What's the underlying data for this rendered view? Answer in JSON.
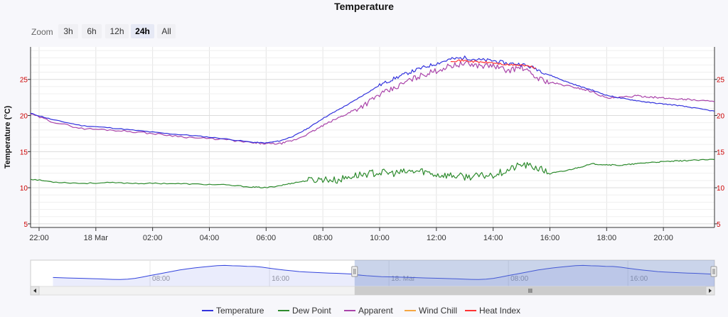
{
  "chart_data": {
    "type": "line",
    "title": "Temperature",
    "ylabel": "Temperature (°C)",
    "ylim": [
      4.5,
      29.5
    ],
    "yticks": [
      5,
      10,
      15,
      20,
      25
    ],
    "x_range_hours": [
      21.7,
      45.8
    ],
    "xticks": [
      {
        "h": 22,
        "label": "22:00"
      },
      {
        "h": 24,
        "label": "18 Mar"
      },
      {
        "h": 26,
        "label": "02:00"
      },
      {
        "h": 28,
        "label": "04:00"
      },
      {
        "h": 30,
        "label": "06:00"
      },
      {
        "h": 32,
        "label": "08:00"
      },
      {
        "h": 34,
        "label": "10:00"
      },
      {
        "h": 36,
        "label": "12:00"
      },
      {
        "h": 38,
        "label": "14:00"
      },
      {
        "h": 40,
        "label": "16:00"
      },
      {
        "h": 42,
        "label": "18:00"
      },
      {
        "h": 44,
        "label": "20:00"
      }
    ],
    "grid": true,
    "legend_position": "bottom",
    "series": [
      {
        "name": "Temperature",
        "color": "#3333dd",
        "points": [
          [
            21.7,
            20.3
          ],
          [
            22.5,
            19.4
          ],
          [
            23.5,
            18.6
          ],
          [
            24.5,
            18.3
          ],
          [
            25.5,
            17.9
          ],
          [
            26.5,
            17.5
          ],
          [
            27.5,
            17.2
          ],
          [
            28.5,
            16.8
          ],
          [
            29.5,
            16.3
          ],
          [
            30.0,
            16.2
          ],
          [
            30.5,
            16.5
          ],
          [
            31.0,
            17.2
          ],
          [
            31.5,
            18.3
          ],
          [
            32.0,
            19.6
          ],
          [
            32.5,
            20.7
          ],
          [
            33.0,
            21.8
          ],
          [
            33.5,
            23.0
          ],
          [
            34.0,
            24.2
          ],
          [
            34.5,
            25.1
          ],
          [
            35.0,
            25.9
          ],
          [
            35.5,
            26.6
          ],
          [
            36.0,
            27.2
          ],
          [
            36.5,
            27.8
          ],
          [
            37.0,
            28.0
          ],
          [
            37.5,
            27.7
          ],
          [
            38.0,
            27.6
          ],
          [
            38.5,
            27.2
          ],
          [
            39.0,
            27.1
          ],
          [
            39.5,
            26.5
          ],
          [
            40.0,
            25.6
          ],
          [
            40.5,
            24.8
          ],
          [
            41.0,
            24.1
          ],
          [
            41.5,
            23.5
          ],
          [
            42.0,
            22.8
          ],
          [
            42.5,
            22.4
          ],
          [
            43.0,
            22.1
          ],
          [
            43.5,
            21.8
          ],
          [
            44.0,
            21.6
          ],
          [
            44.5,
            21.4
          ],
          [
            45.0,
            21.1
          ],
          [
            45.8,
            20.6
          ]
        ]
      },
      {
        "name": "Dew Point",
        "color": "#2e8b2e",
        "points": [
          [
            21.7,
            11.2
          ],
          [
            22.5,
            10.8
          ],
          [
            23.5,
            10.6
          ],
          [
            24.5,
            10.7
          ],
          [
            25.5,
            10.6
          ],
          [
            26.5,
            10.6
          ],
          [
            27.5,
            10.5
          ],
          [
            28.5,
            10.4
          ],
          [
            29.5,
            10.1
          ],
          [
            30.0,
            10.0
          ],
          [
            30.5,
            10.3
          ],
          [
            31.0,
            10.7
          ],
          [
            31.5,
            11.0
          ],
          [
            32.0,
            11.2
          ],
          [
            32.5,
            11.0
          ],
          [
            33.0,
            11.6
          ],
          [
            33.5,
            11.9
          ],
          [
            34.0,
            12.1
          ],
          [
            34.5,
            12.0
          ],
          [
            35.0,
            12.2
          ],
          [
            35.5,
            12.3
          ],
          [
            36.0,
            11.8
          ],
          [
            36.5,
            11.7
          ],
          [
            37.0,
            11.5
          ],
          [
            37.5,
            11.6
          ],
          [
            38.0,
            11.8
          ],
          [
            38.5,
            12.4
          ],
          [
            39.0,
            13.2
          ],
          [
            39.5,
            12.8
          ],
          [
            40.0,
            12.0
          ],
          [
            40.5,
            12.3
          ],
          [
            41.0,
            12.8
          ],
          [
            41.5,
            13.3
          ],
          [
            42.0,
            13.2
          ],
          [
            42.5,
            13.1
          ],
          [
            43.0,
            13.3
          ],
          [
            43.5,
            13.5
          ],
          [
            44.0,
            13.6
          ],
          [
            44.5,
            13.7
          ],
          [
            45.0,
            13.8
          ],
          [
            45.8,
            13.9
          ]
        ]
      },
      {
        "name": "Apparent",
        "color": "#aa44aa",
        "points": [
          [
            21.7,
            20.2
          ],
          [
            22.5,
            19.1
          ],
          [
            23.5,
            18.2
          ],
          [
            24.5,
            18.0
          ],
          [
            25.5,
            17.7
          ],
          [
            26.5,
            17.3
          ],
          [
            27.5,
            16.9
          ],
          [
            28.5,
            16.7
          ],
          [
            29.5,
            16.2
          ],
          [
            30.0,
            16.1
          ],
          [
            30.5,
            16.1
          ],
          [
            31.0,
            16.6
          ],
          [
            31.5,
            17.5
          ],
          [
            32.0,
            18.6
          ],
          [
            32.5,
            19.6
          ],
          [
            33.0,
            20.5
          ],
          [
            33.5,
            21.6
          ],
          [
            34.0,
            22.9
          ],
          [
            34.5,
            23.7
          ],
          [
            35.0,
            24.8
          ],
          [
            35.5,
            25.6
          ],
          [
            36.0,
            26.2
          ],
          [
            36.5,
            26.9
          ],
          [
            37.0,
            27.2
          ],
          [
            37.5,
            26.9
          ],
          [
            38.0,
            26.9
          ],
          [
            38.5,
            26.2
          ],
          [
            39.0,
            26.7
          ],
          [
            39.5,
            25.3
          ],
          [
            40.0,
            24.6
          ],
          [
            40.5,
            24.2
          ],
          [
            41.0,
            23.8
          ],
          [
            41.5,
            23.3
          ],
          [
            42.0,
            22.4
          ],
          [
            42.5,
            22.5
          ],
          [
            43.0,
            22.7
          ],
          [
            43.5,
            22.6
          ],
          [
            44.0,
            22.4
          ],
          [
            44.5,
            22.3
          ],
          [
            45.0,
            22.2
          ],
          [
            45.8,
            21.9
          ]
        ]
      },
      {
        "name": "Wind Chill",
        "color": "#f5a742",
        "points": []
      },
      {
        "name": "Heat Index",
        "color": "#ff3333",
        "points": [
          [
            36.5,
            27.6
          ],
          [
            37.0,
            27.6
          ],
          [
            37.5,
            27.4
          ],
          [
            38.0,
            27.3
          ],
          [
            38.5,
            27.0
          ],
          [
            39.0,
            27.0
          ],
          [
            39.5,
            26.6
          ]
        ]
      }
    ]
  },
  "zoom": {
    "label": "Zoom",
    "buttons": [
      "3h",
      "6h",
      "12h",
      "24h",
      "All"
    ],
    "active": "24h"
  },
  "navigator": {
    "x_range_hours": [
      0,
      45.8
    ],
    "selected_hours": [
      21.7,
      45.8
    ],
    "ticks": [
      {
        "h": 8,
        "label": "08:00"
      },
      {
        "h": 16,
        "label": "16:00"
      },
      {
        "h": 24,
        "label": "18. Mar"
      },
      {
        "h": 32,
        "label": "08:00"
      },
      {
        "h": 40,
        "label": "16:00"
      }
    ]
  }
}
